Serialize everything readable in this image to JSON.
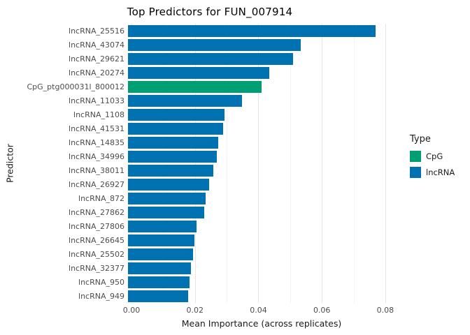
{
  "colors": {
    "CpG": "#009E73",
    "lncRNA": "#0072B2"
  },
  "chart_data": {
    "type": "bar",
    "orientation": "horizontal",
    "title": "Top Predictors for FUN_007914",
    "xlabel": "Mean Importance (across replicates)",
    "ylabel": "Predictor",
    "xlim": [
      0,
      0.082
    ],
    "x_ticks": [
      0,
      0.02,
      0.04,
      0.06,
      0.08
    ],
    "minor_ticks": [
      0.01,
      0.03,
      0.05,
      0.07
    ],
    "x_tick_labels": [
      "0.00",
      "0.02",
      "0.04",
      "0.06",
      "0.08"
    ],
    "grid": true,
    "background": "#ffffff",
    "legend": {
      "title": "Type",
      "position": "right",
      "entries": [
        {
          "label": "CpG",
          "color": "#009E73"
        },
        {
          "label": "lncRNA",
          "color": "#0072B2"
        }
      ]
    },
    "categories": [
      "lncRNA_25516",
      "lncRNA_43074",
      "lncRNA_29621",
      "lncRNA_20274",
      "CpG_ptg000031l_800012",
      "lncRNA_11033",
      "lncRNA_1108",
      "lncRNA_41531",
      "lncRNA_14835",
      "lncRNA_34996",
      "lncRNA_38011",
      "lncRNA_26927",
      "lncRNA_872",
      "lncRNA_27862",
      "lncRNA_27806",
      "lncRNA_26645",
      "lncRNA_25502",
      "lncRNA_32377",
      "lncRNA_950",
      "lncRNA_949"
    ],
    "types": [
      "lncRNA",
      "lncRNA",
      "lncRNA",
      "lncRNA",
      "CpG",
      "lncRNA",
      "lncRNA",
      "lncRNA",
      "lncRNA",
      "lncRNA",
      "lncRNA",
      "lncRNA",
      "lncRNA",
      "lncRNA",
      "lncRNA",
      "lncRNA",
      "lncRNA",
      "lncRNA",
      "lncRNA",
      "lncRNA"
    ],
    "values": [
      0.078,
      0.0545,
      0.052,
      0.0445,
      0.042,
      0.036,
      0.0305,
      0.03,
      0.0285,
      0.028,
      0.027,
      0.0255,
      0.0245,
      0.024,
      0.0215,
      0.021,
      0.0205,
      0.0198,
      0.0195,
      0.019
    ]
  }
}
